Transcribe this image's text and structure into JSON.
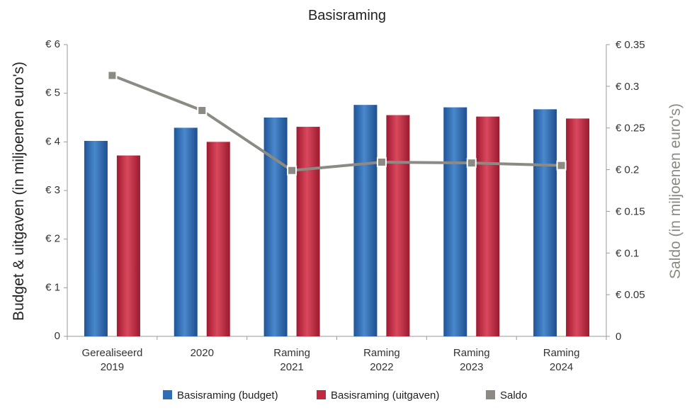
{
  "chart_data": {
    "type": "bar",
    "title": "Basisraming",
    "categories": [
      [
        "Gerealiseerd",
        "2019"
      ],
      [
        "2020"
      ],
      [
        "Raming",
        "2021"
      ],
      [
        "Raming",
        "2022"
      ],
      [
        "Raming",
        "2023"
      ],
      [
        "Raming",
        "2024"
      ]
    ],
    "series": [
      {
        "name": "Basisraming (budget)",
        "type": "bar",
        "axis": "left",
        "color": "#2f6db5",
        "values": [
          4.02,
          4.29,
          4.5,
          4.76,
          4.71,
          4.67
        ]
      },
      {
        "name": "Basisraming (uitgaven)",
        "type": "bar",
        "axis": "left",
        "color": "#c0283f",
        "values": [
          3.72,
          4.0,
          4.31,
          4.55,
          4.52,
          4.48
        ]
      },
      {
        "name": "Saldo",
        "type": "line",
        "axis": "right",
        "color": "#8c8a82",
        "values": [
          0.313,
          0.271,
          0.199,
          0.209,
          0.208,
          0.205
        ]
      }
    ],
    "y_left": {
      "label": "Budget & uitgaven (in miljoenen euro's)",
      "range": [
        0,
        6
      ],
      "ticks": [
        0,
        1,
        2,
        3,
        4,
        5,
        6
      ],
      "tick_labels": [
        "0",
        "€ 1",
        "€ 2",
        "€ 3",
        "€ 4",
        "€ 5",
        "€ 6"
      ]
    },
    "y_right": {
      "label": "Saldo (in miljoenen euro's)",
      "range": [
        0,
        0.35
      ],
      "ticks": [
        0,
        0.05,
        0.1,
        0.15,
        0.2,
        0.25,
        0.3,
        0.35
      ],
      "tick_labels": [
        "0",
        "€ 0.05",
        "€ 0.1",
        "€ 0.15",
        "€ 0.2",
        "€ 0.25",
        "€ 0.3",
        "€ 0.35"
      ]
    },
    "grid": false,
    "legend_position": "bottom"
  }
}
